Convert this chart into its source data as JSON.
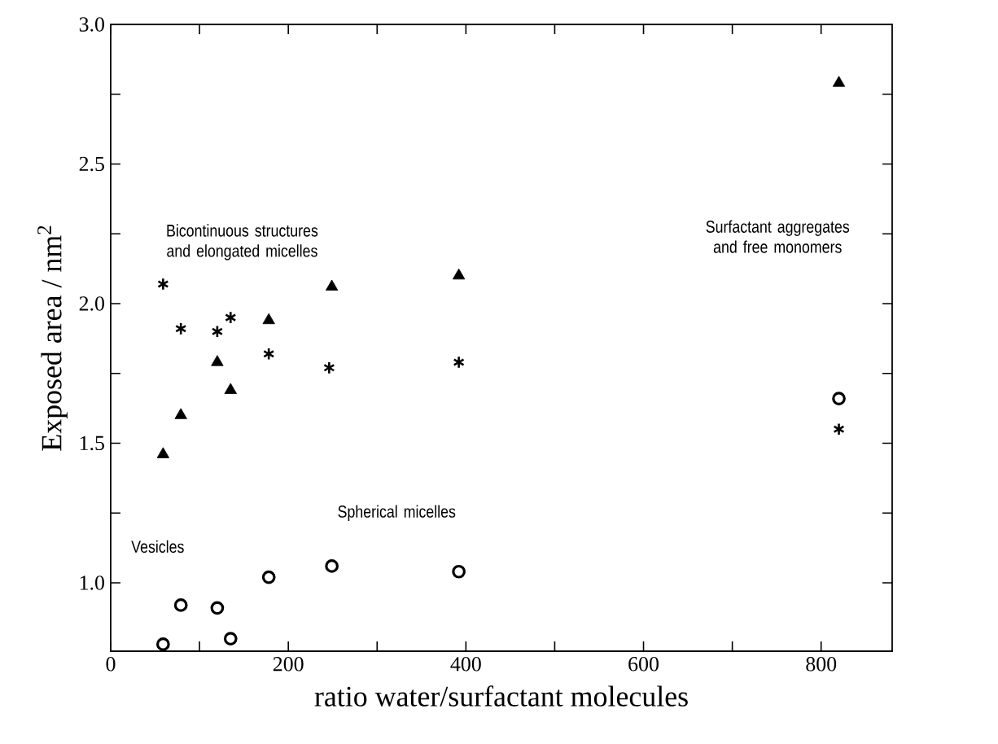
{
  "chart_data": {
    "type": "scatter",
    "xlabel": "ratio water/surfactant molecules",
    "ylabel": "Exposed area / nm$^{2}$",
    "xlim": [
      0,
      880
    ],
    "ylim": [
      0.755,
      3.0
    ],
    "xticks": [
      0,
      {
        "value": 100,
        "label": null
      },
      200,
      {
        "value": 300,
        "label": null
      },
      400,
      {
        "value": 500,
        "label": null
      },
      600,
      {
        "value": 700,
        "label": null
      },
      800
    ],
    "yticks": [
      {
        "value": 1.0,
        "label": "1.0"
      },
      {
        "value": 1.25,
        "label": null
      },
      {
        "value": 1.5,
        "label": "1.5"
      },
      {
        "value": 1.75,
        "label": null
      },
      {
        "value": 2.0,
        "label": "2.0"
      },
      {
        "value": 2.25,
        "label": null
      },
      {
        "value": 2.5,
        "label": "2.5"
      },
      {
        "value": 2.75,
        "label": null
      },
      {
        "value": 3.0,
        "label": "3.0"
      }
    ],
    "grid": false,
    "legend": false,
    "series": [
      {
        "marker": "cross",
        "color": "#000000",
        "x": [
          59,
          79,
          120,
          135,
          178,
          246,
          392,
          820
        ],
        "values": [
          2.07,
          1.91,
          1.9,
          1.95,
          1.82,
          1.77,
          1.79,
          1.55
        ]
      },
      {
        "marker": "triangle",
        "color": "#000000",
        "x": [
          59,
          79,
          120,
          135,
          178,
          249,
          392,
          820
        ],
        "values": [
          1.46,
          1.6,
          1.79,
          1.69,
          1.94,
          2.06,
          2.1,
          2.79
        ]
      },
      {
        "marker": "circle",
        "color": "#000000",
        "x": [
          59,
          79,
          120,
          135,
          178,
          249,
          392,
          820
        ],
        "values": [
          0.78,
          0.92,
          0.91,
          0.8,
          1.02,
          1.06,
          1.04,
          1.66
        ]
      }
    ],
    "annotations": [
      "Bicontinuous structures and elongated micelles",
      "Surfactant aggregates and free monomers",
      "Spherical micelles",
      "Vesicles"
    ]
  }
}
